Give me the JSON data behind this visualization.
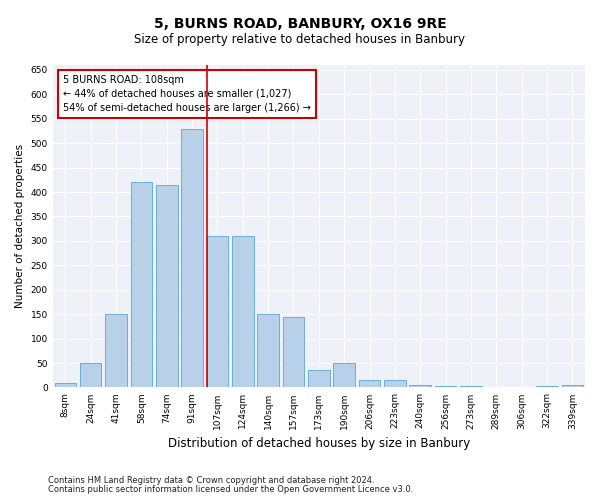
{
  "title": "5, BURNS ROAD, BANBURY, OX16 9RE",
  "subtitle": "Size of property relative to detached houses in Banbury",
  "xlabel": "Distribution of detached houses by size in Banbury",
  "ylabel": "Number of detached properties",
  "footer_line1": "Contains HM Land Registry data © Crown copyright and database right 2024.",
  "footer_line2": "Contains public sector information licensed under the Open Government Licence v3.0.",
  "bar_color": "#b8d0e8",
  "bar_edge_color": "#6aaed6",
  "background_color": "#eef2f8",
  "grid_color": "#ffffff",
  "vline_color": "#cc0000",
  "categories": [
    "8sqm",
    "24sqm",
    "41sqm",
    "58sqm",
    "74sqm",
    "91sqm",
    "107sqm",
    "124sqm",
    "140sqm",
    "157sqm",
    "173sqm",
    "190sqm",
    "206sqm",
    "223sqm",
    "240sqm",
    "256sqm",
    "273sqm",
    "289sqm",
    "306sqm",
    "322sqm",
    "339sqm"
  ],
  "values": [
    10,
    50,
    150,
    420,
    415,
    530,
    310,
    310,
    150,
    145,
    35,
    50,
    15,
    15,
    5,
    2,
    2,
    1,
    1,
    2,
    5
  ],
  "vline_index": 6,
  "annotation_text": "5 BURNS ROAD: 108sqm\n← 44% of detached houses are smaller (1,027)\n54% of semi-detached houses are larger (1,266) →",
  "ylim": [
    0,
    660
  ],
  "yticks": [
    0,
    50,
    100,
    150,
    200,
    250,
    300,
    350,
    400,
    450,
    500,
    550,
    600,
    650
  ],
  "title_fontsize": 10,
  "subtitle_fontsize": 8.5,
  "ylabel_fontsize": 7.5,
  "xlabel_fontsize": 8.5,
  "tick_fontsize": 6.5,
  "annot_fontsize": 7,
  "footer_fontsize": 6
}
